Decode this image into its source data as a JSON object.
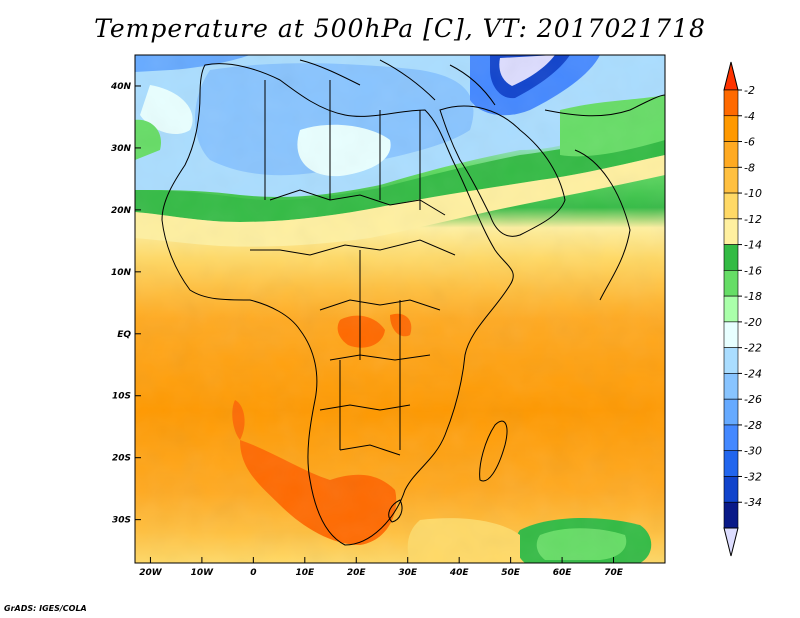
{
  "title": "Temperature at 500hPa [C], VT: 2017021718",
  "credit": "GrADS: IGES/COLA",
  "map": {
    "lon_range": [
      -23,
      80
    ],
    "lat_range": [
      -37,
      45
    ],
    "x_ticks": [
      {
        "lon": -20,
        "label": "20W"
      },
      {
        "lon": -10,
        "label": "10W"
      },
      {
        "lon": 0,
        "label": "0"
      },
      {
        "lon": 10,
        "label": "10E"
      },
      {
        "lon": 20,
        "label": "20E"
      },
      {
        "lon": 30,
        "label": "30E"
      },
      {
        "lon": 40,
        "label": "40E"
      },
      {
        "lon": 50,
        "label": "50E"
      },
      {
        "lon": 60,
        "label": "60E"
      },
      {
        "lon": 70,
        "label": "70E"
      }
    ],
    "y_ticks": [
      {
        "lat": 40,
        "label": "40N"
      },
      {
        "lat": 30,
        "label": "30N"
      },
      {
        "lat": 20,
        "label": "20N"
      },
      {
        "lat": 10,
        "label": "10N"
      },
      {
        "lat": 0,
        "label": "EQ"
      },
      {
        "lat": -10,
        "label": "10S"
      },
      {
        "lat": -20,
        "label": "20S"
      },
      {
        "lat": -30,
        "label": "30S"
      }
    ]
  },
  "colorbar": {
    "labels": [
      "-2",
      "-4",
      "-6",
      "-8",
      "-10",
      "-12",
      "-14",
      "-16",
      "-18",
      "-20",
      "-22",
      "-24",
      "-26",
      "-28",
      "-30",
      "-32",
      "-34"
    ],
    "colors": [
      "#ff6a00",
      "#ff9900",
      "#ffaa22",
      "#ffc040",
      "#ffd966",
      "#fff0a0",
      "#33bb44",
      "#66dd66",
      "#aaffaa",
      "#e8ffff",
      "#aaddff",
      "#88c4ff",
      "#66aaff",
      "#4488ff",
      "#2266ee",
      "#1144cc",
      "#0a1a88"
    ],
    "top_arrow_color": "#ff3300",
    "bottom_arrow_color": "#ddddff"
  }
}
